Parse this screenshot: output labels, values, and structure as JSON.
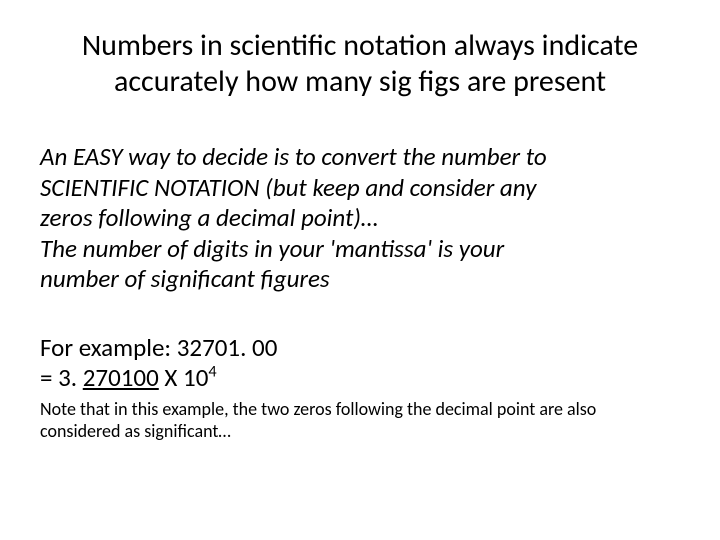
{
  "title": {
    "line1": "Numbers in scientific notation always indicate",
    "line2": "accurately how many sig figs are present"
  },
  "body": {
    "line1": "An EASY way to decide is to convert the number to",
    "line2": "SCIENTIFIC NOTATION (but keep and consider any",
    "line3": "zeros following a decimal point)…",
    "line4": "The number of digits in your 'mantissa' is your",
    "line5": "number of significant figures"
  },
  "example": {
    "line1": "For example:  32701. 00",
    "eq_prefix": "= 3. ",
    "eq_underlined": "270100",
    "eq_mid": " X 10",
    "eq_exponent": "4"
  },
  "note": {
    "line1": "Note that in this example, the two zeros following the decimal point are also",
    "line2": "considered as significant…"
  },
  "colors": {
    "background": "#ffffff",
    "text": "#000000"
  },
  "typography": {
    "title_fontsize": 30,
    "body_fontsize": 25,
    "note_fontsize": 18,
    "font_family": "Calibri"
  }
}
